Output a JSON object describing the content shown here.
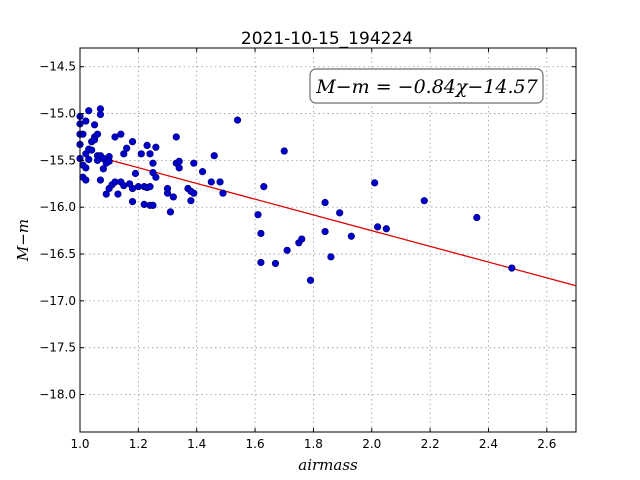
{
  "chart_data": {
    "type": "scatter",
    "title": "2021-10-15_194224",
    "xlabel": "airmass",
    "ylabel": "M−m",
    "xlim": [
      1.0,
      2.7
    ],
    "ylim": [
      -18.4,
      -14.3
    ],
    "xticks": [
      1.0,
      1.2,
      1.4,
      1.6,
      1.8,
      2.0,
      2.2,
      2.4,
      2.6
    ],
    "xtick_labels": [
      "1.0",
      "1.2",
      "1.4",
      "1.6",
      "1.8",
      "2.0",
      "2.2",
      "2.4",
      "2.6"
    ],
    "yticks": [
      -14.5,
      -15.0,
      -15.5,
      -16.0,
      -16.5,
      -17.0,
      -17.5,
      -18.0
    ],
    "ytick_labels": [
      "−14.5",
      "−15.0",
      "−15.5",
      "−16.0",
      "−16.5",
      "−17.0",
      "−17.5",
      "−18.0"
    ],
    "grid": true,
    "annotation": "M−m = −0.84χ−14.57",
    "annotation_position": "top-right",
    "fit": {
      "slope": -0.84,
      "intercept": -14.57,
      "x_range": [
        1.1,
        2.7
      ]
    },
    "point_color": "#0000cc",
    "fit_color": "#dd0000",
    "points": [
      [
        1.0,
        -15.03
      ],
      [
        1.0,
        -15.11
      ],
      [
        1.0,
        -15.22
      ],
      [
        1.01,
        -15.22
      ],
      [
        1.0,
        -15.33
      ],
      [
        1.0,
        -15.48
      ],
      [
        1.01,
        -15.55
      ],
      [
        1.02,
        -15.58
      ],
      [
        1.01,
        -15.68
      ],
      [
        1.02,
        -15.71
      ],
      [
        1.02,
        -15.08
      ],
      [
        1.03,
        -14.97
      ],
      [
        1.02,
        -15.43
      ],
      [
        1.03,
        -15.38
      ],
      [
        1.03,
        -15.49
      ],
      [
        1.04,
        -15.3
      ],
      [
        1.04,
        -15.39
      ],
      [
        1.05,
        -15.12
      ],
      [
        1.05,
        -15.25
      ],
      [
        1.05,
        -15.28
      ],
      [
        1.06,
        -15.22
      ],
      [
        1.06,
        -15.45
      ],
      [
        1.06,
        -15.5
      ],
      [
        1.07,
        -14.95
      ],
      [
        1.07,
        -15.01
      ],
      [
        1.07,
        -15.45
      ],
      [
        1.07,
        -15.71
      ],
      [
        1.08,
        -15.48
      ],
      [
        1.08,
        -15.59
      ],
      [
        1.09,
        -15.53
      ],
      [
        1.09,
        -15.86
      ],
      [
        1.1,
        -15.46
      ],
      [
        1.1,
        -15.51
      ],
      [
        1.1,
        -15.8
      ],
      [
        1.11,
        -15.76
      ],
      [
        1.12,
        -15.25
      ],
      [
        1.12,
        -15.73
      ],
      [
        1.13,
        -15.86
      ],
      [
        1.14,
        -15.22
      ],
      [
        1.14,
        -15.73
      ],
      [
        1.15,
        -15.77
      ],
      [
        1.15,
        -15.43
      ],
      [
        1.16,
        -15.37
      ],
      [
        1.17,
        -15.75
      ],
      [
        1.18,
        -15.3
      ],
      [
        1.18,
        -15.8
      ],
      [
        1.18,
        -15.94
      ],
      [
        1.19,
        -15.64
      ],
      [
        1.2,
        -15.78
      ],
      [
        1.21,
        -15.43
      ],
      [
        1.22,
        -15.78
      ],
      [
        1.22,
        -15.97
      ],
      [
        1.23,
        -15.34
      ],
      [
        1.23,
        -15.79
      ],
      [
        1.24,
        -15.43
      ],
      [
        1.24,
        -15.78
      ],
      [
        1.24,
        -15.98
      ],
      [
        1.25,
        -15.98
      ],
      [
        1.25,
        -15.53
      ],
      [
        1.25,
        -15.63
      ],
      [
        1.26,
        -15.36
      ],
      [
        1.26,
        -15.68
      ],
      [
        1.3,
        -15.85
      ],
      [
        1.3,
        -15.8
      ],
      [
        1.31,
        -16.05
      ],
      [
        1.32,
        -15.89
      ],
      [
        1.33,
        -15.25
      ],
      [
        1.33,
        -15.53
      ],
      [
        1.34,
        -15.51
      ],
      [
        1.34,
        -15.58
      ],
      [
        1.37,
        -15.8
      ],
      [
        1.38,
        -15.83
      ],
      [
        1.38,
        -15.93
      ],
      [
        1.39,
        -15.85
      ],
      [
        1.39,
        -15.53
      ],
      [
        1.42,
        -15.62
      ],
      [
        1.45,
        -15.73
      ],
      [
        1.46,
        -15.45
      ],
      [
        1.48,
        -15.73
      ],
      [
        1.49,
        -15.85
      ],
      [
        1.54,
        -15.07
      ],
      [
        1.61,
        -16.08
      ],
      [
        1.62,
        -16.28
      ],
      [
        1.62,
        -16.59
      ],
      [
        1.63,
        -15.78
      ],
      [
        1.67,
        -16.6
      ],
      [
        1.7,
        -15.4
      ],
      [
        1.71,
        -16.46
      ],
      [
        1.75,
        -16.38
      ],
      [
        1.76,
        -16.34
      ],
      [
        1.79,
        -16.78
      ],
      [
        1.84,
        -15.95
      ],
      [
        1.84,
        -16.26
      ],
      [
        1.86,
        -16.53
      ],
      [
        1.89,
        -16.06
      ],
      [
        1.93,
        -16.31
      ],
      [
        2.01,
        -15.74
      ],
      [
        2.02,
        -16.21
      ],
      [
        2.05,
        -16.23
      ],
      [
        2.18,
        -15.93
      ],
      [
        2.36,
        -16.11
      ],
      [
        2.48,
        -16.65
      ]
    ]
  }
}
